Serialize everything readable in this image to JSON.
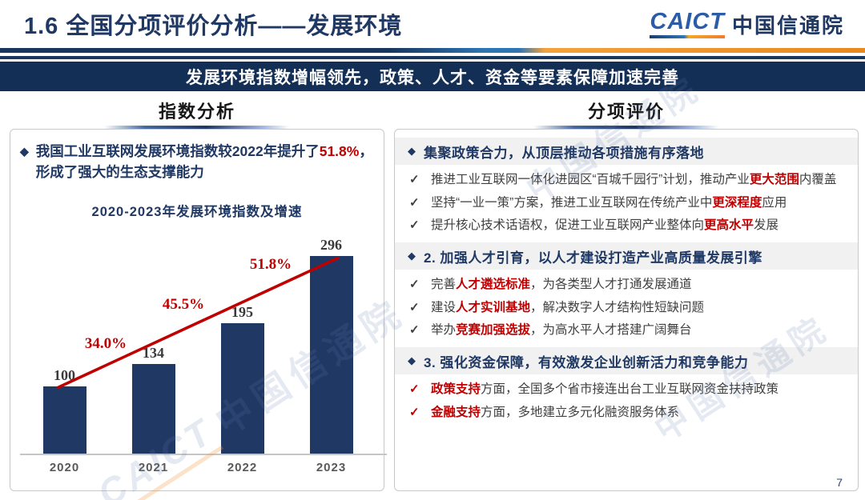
{
  "header": {
    "title": "1.6  全国分项评价分析——发展环境",
    "logo_en": "CAICT",
    "logo_cn": "中国信通院"
  },
  "banner": {
    "text": "发展环境指数增幅领先，政策、人才、资金等要素保障加速完善"
  },
  "left": {
    "section_title": "指数分析",
    "bullet": {
      "marker": "◆",
      "segments": [
        {
          "t": "我国工业互联网发展环境指数较2022年提升了"
        },
        {
          "t": "51.8%",
          "red": true
        },
        {
          "t": "，形成了强大的生态支撑能力"
        }
      ]
    }
  },
  "right": {
    "section_title": "分项评价",
    "diamond": "◆",
    "check_mark": "✓",
    "items": [
      {
        "type": "header",
        "text": "集聚政策合力，从顶层推动各项措施有序落地"
      },
      {
        "type": "check",
        "check": "dark",
        "segments": [
          {
            "t": "推进工业互联网一体化进园区“百城千园行”计划，推动产业"
          },
          {
            "t": "更大范围",
            "red": true
          },
          {
            "t": "内覆盖"
          }
        ]
      },
      {
        "type": "check",
        "check": "dark",
        "segments": [
          {
            "t": "坚持“一业一策”方案，推进工业互联网在传统产业中"
          },
          {
            "t": "更深程度",
            "red": true
          },
          {
            "t": "应用"
          }
        ]
      },
      {
        "type": "check",
        "check": "dark",
        "segments": [
          {
            "t": "提升核心技术话语权，促进工业互联网产业整体向"
          },
          {
            "t": "更高水平",
            "red": true
          },
          {
            "t": "发展"
          }
        ]
      },
      {
        "type": "header",
        "text": "2. 加强人才引育，以人才建设打造产业高质量发展引擎"
      },
      {
        "type": "check",
        "check": "dark",
        "segments": [
          {
            "t": "完善"
          },
          {
            "t": "人才遴选标准",
            "red": true
          },
          {
            "t": "，为各类型人才打通发展通道"
          }
        ]
      },
      {
        "type": "check",
        "check": "dark",
        "segments": [
          {
            "t": "建设"
          },
          {
            "t": "人才实训基地",
            "red": true
          },
          {
            "t": "，解决数字人才结构性短缺问题"
          }
        ]
      },
      {
        "type": "check",
        "check": "dark",
        "segments": [
          {
            "t": "举办"
          },
          {
            "t": "竞赛加强选拔",
            "red": true
          },
          {
            "t": "，为高水平人才搭建广阔舞台"
          }
        ]
      },
      {
        "type": "header",
        "text": "3. 强化资金保障，有效激发企业创新活力和竞争能力"
      },
      {
        "type": "check",
        "check": "red",
        "segments": [
          {
            "t": "政策支持",
            "red": true
          },
          {
            "t": "方面，全国多个省市接连出台工业互联网资金扶持政策"
          }
        ]
      },
      {
        "type": "check",
        "check": "red",
        "segments": [
          {
            "t": "金融支持",
            "red": true
          },
          {
            "t": "方面，多地建立多元化融资服务体系"
          }
        ]
      }
    ]
  },
  "chart_data": {
    "type": "bar",
    "title": "2020-2023年发展环境指数及增速",
    "categories": [
      "2020",
      "2021",
      "2022",
      "2023"
    ],
    "series": [
      {
        "name": "发展环境指数",
        "type": "bar",
        "values": [
          100,
          134,
          195,
          296
        ]
      },
      {
        "name": "增速",
        "type": "line",
        "values": [
          34.0,
          45.5,
          51.8
        ],
        "labels": [
          "34.0%",
          "45.5%",
          "51.8%"
        ]
      }
    ],
    "ylim": [
      0,
      300
    ],
    "bar_color": "#1F3864",
    "line_color": "#C00000"
  },
  "watermark": {
    "brand": "CAICT",
    "name": "中国信通院"
  },
  "footer": {
    "page": "7"
  },
  "colors": {
    "navy": "#1F3864",
    "banner": "#132F55",
    "red": "#C00000",
    "orange": "#ED7D31",
    "body_text": "#404040",
    "strip_bg": "#F1F1F1"
  }
}
